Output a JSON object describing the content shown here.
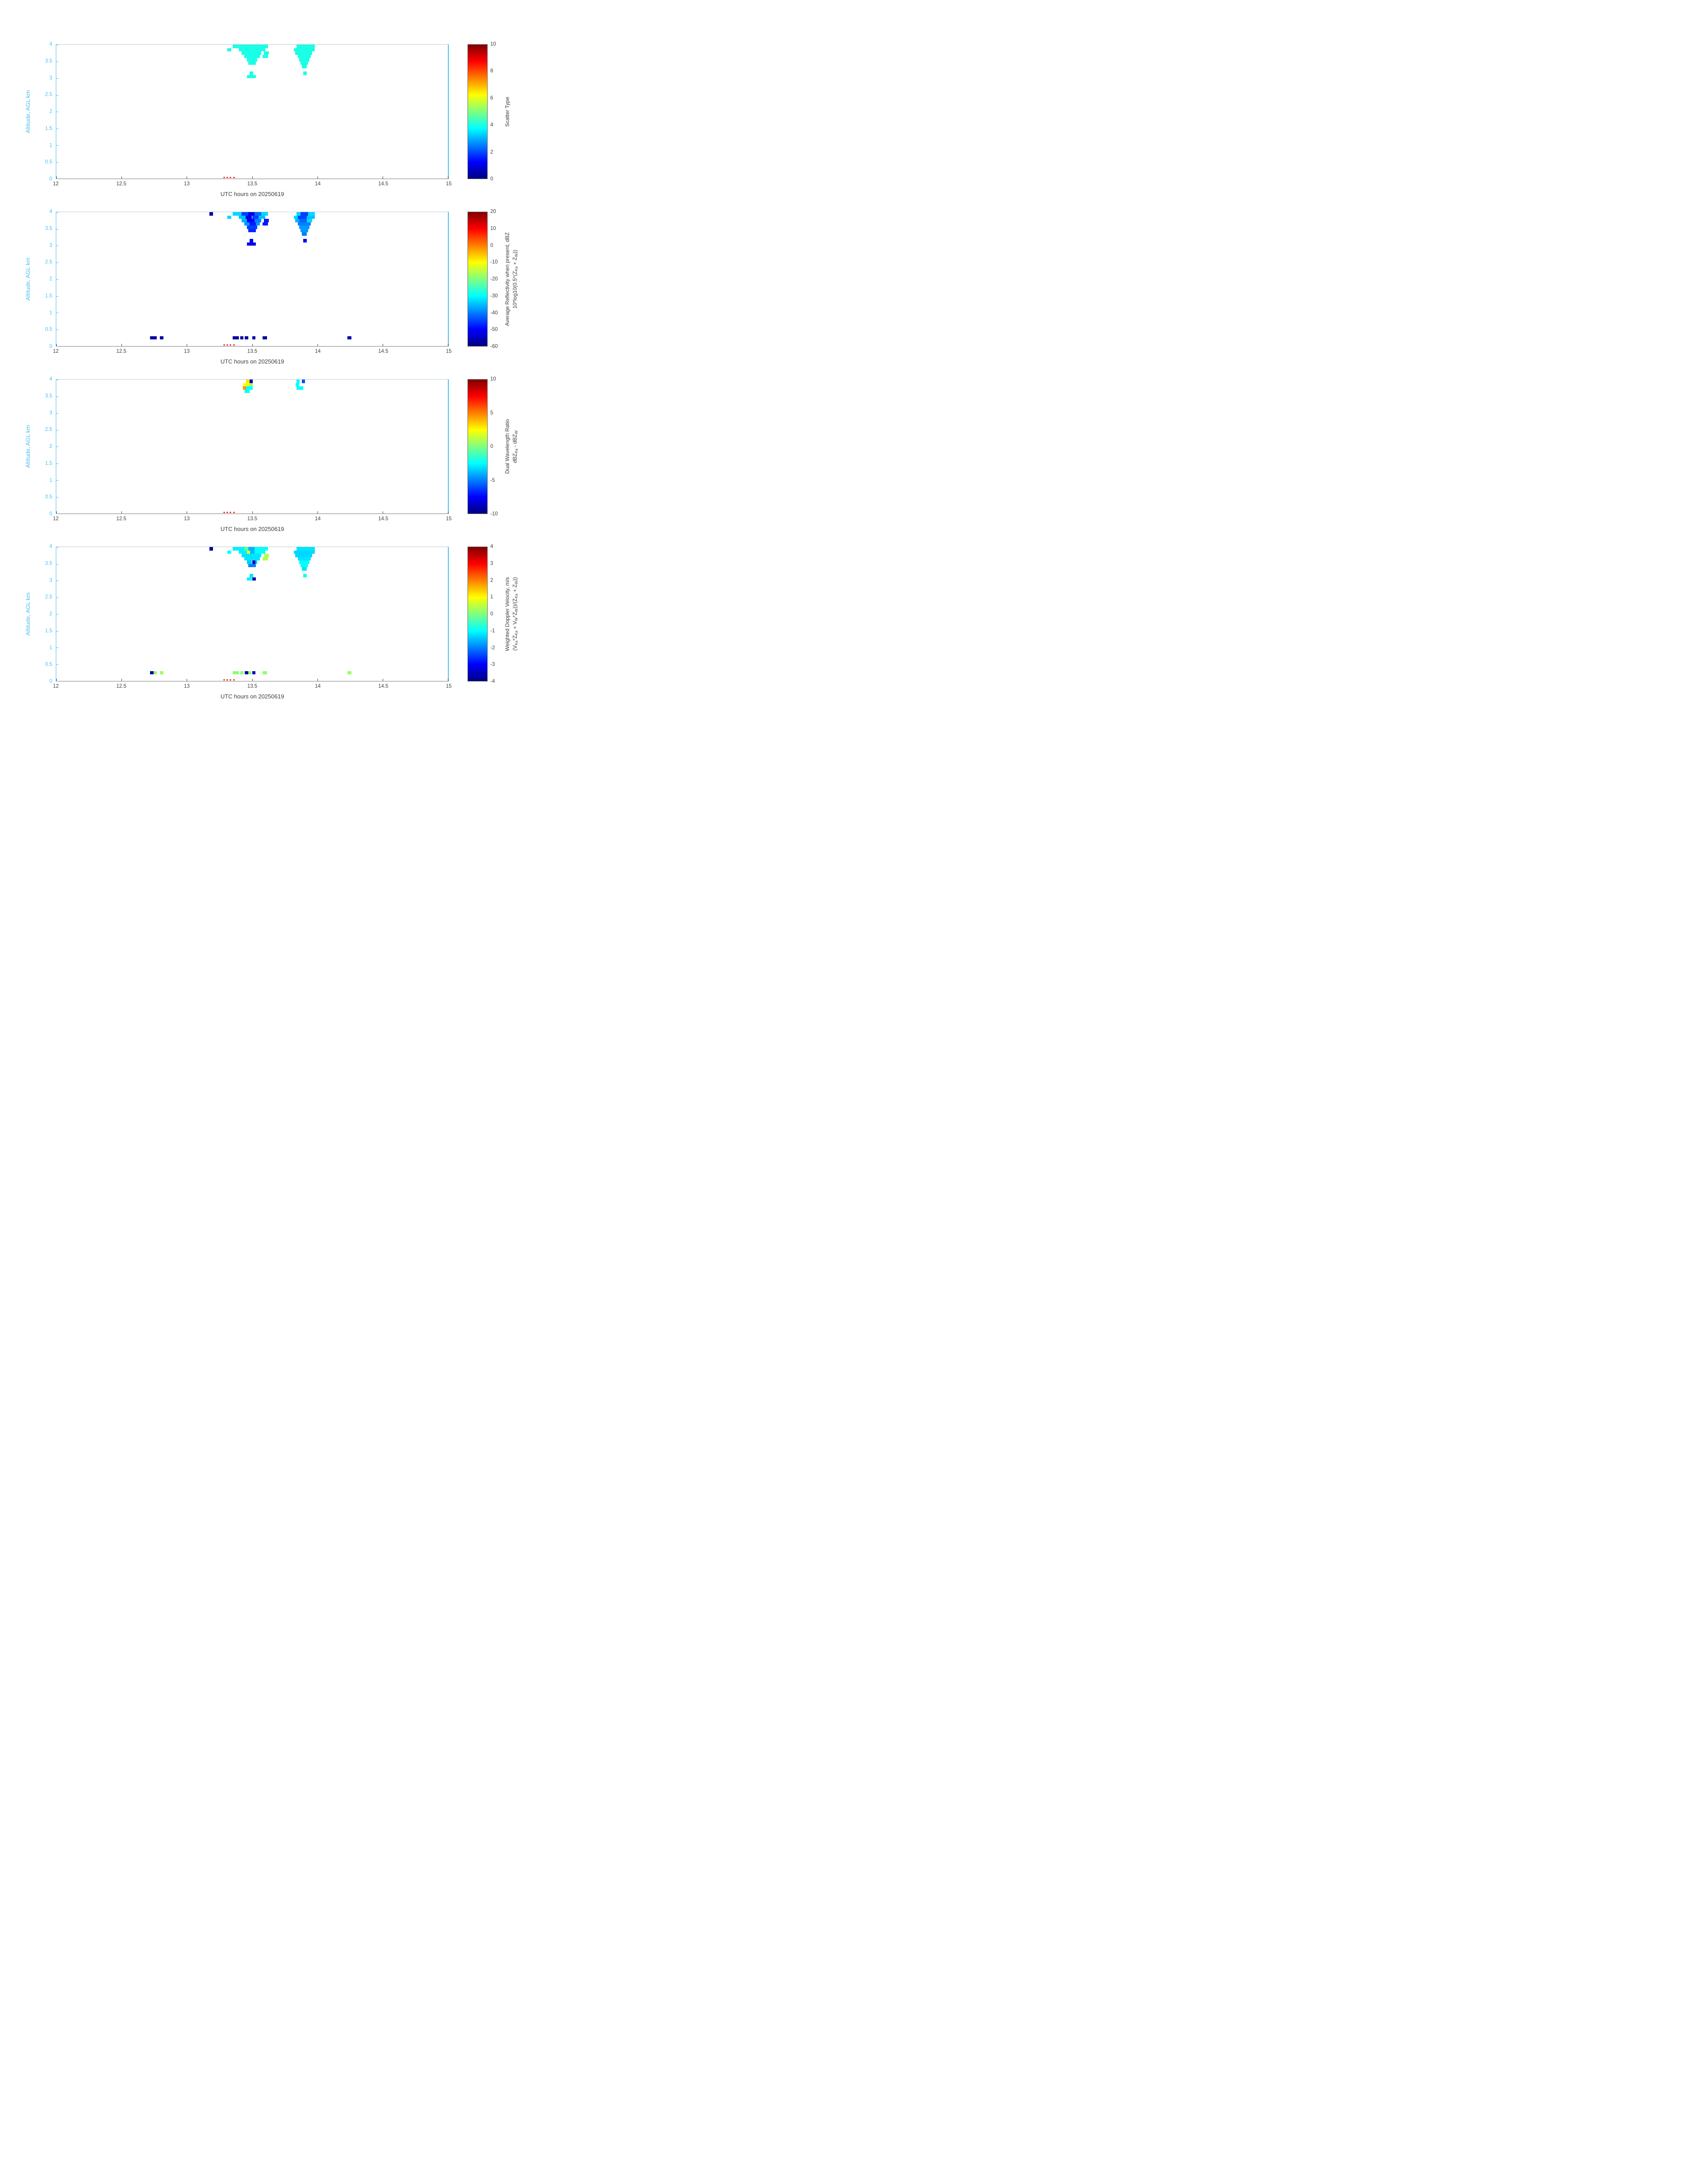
{
  "figure": {
    "background": "#ffffff",
    "axis_x_color": "#3c3c3c",
    "axis_y_color": "#4dbeee"
  },
  "colormap": {
    "name": "jet",
    "stops": [
      [
        0,
        [
          0,
          0,
          128
        ]
      ],
      [
        0.125,
        [
          0,
          0,
          255
        ]
      ],
      [
        0.375,
        [
          0,
          255,
          255
        ]
      ],
      [
        0.625,
        [
          255,
          255,
          0
        ]
      ],
      [
        0.875,
        [
          255,
          0,
          0
        ]
      ],
      [
        1,
        [
          128,
          0,
          0
        ]
      ]
    ]
  },
  "event_markers": {
    "color": "#ff0000",
    "altitude_km": 0.02,
    "times": [
      13.285,
      13.31,
      13.335,
      13.36
    ]
  },
  "cell_run_format": "[altitude_center_km, time_start_utc_h, time_end_utc_h, value]",
  "chart_data": [
    {
      "type": "heatmap",
      "name": "scatter_type",
      "xlabel": "UTC hours on 20250619",
      "ylabel": "Altitude, AGL km",
      "xlim": [
        12,
        15
      ],
      "ylim": [
        0,
        4
      ],
      "x_tick_labels": [
        "12",
        "12.5",
        "13",
        "13.5",
        "14",
        "14.5",
        "15"
      ],
      "x_tick_values": [
        12,
        12.5,
        13,
        13.5,
        14,
        14.5,
        15
      ],
      "y_tick_labels": [
        "0",
        "0.5",
        "1",
        "1.5",
        "2",
        "2.5",
        "3",
        "3.5",
        "4"
      ],
      "y_tick_values": [
        0,
        0.5,
        1,
        1.5,
        2,
        2.5,
        3,
        3.5,
        4
      ],
      "cell_size": {
        "dx": 0.025,
        "dy": 0.1
      },
      "colorbar": {
        "label_lines": [
          "Scatter Type"
        ],
        "tick_labels": [
          "0",
          "2",
          "4",
          "6",
          "8",
          "10"
        ],
        "tick_values": [
          0,
          2,
          4,
          6,
          8,
          10
        ],
        "clim": [
          0,
          10
        ]
      },
      "runs": [
        [
          3.95,
          13.35,
          13.62,
          4
        ],
        [
          3.85,
          13.31,
          13.34,
          4
        ],
        [
          3.85,
          13.4,
          13.6,
          4
        ],
        [
          3.75,
          13.42,
          13.57,
          4
        ],
        [
          3.75,
          13.59,
          13.63,
          4
        ],
        [
          3.65,
          13.44,
          13.56,
          4
        ],
        [
          3.65,
          13.58,
          13.62,
          4
        ],
        [
          3.55,
          13.46,
          13.54,
          4
        ],
        [
          3.45,
          13.47,
          13.53,
          4
        ],
        [
          3.15,
          13.48,
          13.51,
          4
        ],
        [
          3.05,
          13.46,
          13.53,
          4
        ],
        [
          3.95,
          13.84,
          13.98,
          4
        ],
        [
          3.85,
          13.82,
          13.98,
          4
        ],
        [
          3.75,
          13.83,
          13.96,
          4
        ],
        [
          3.65,
          13.85,
          13.95,
          4
        ],
        [
          3.55,
          13.86,
          13.94,
          4
        ],
        [
          3.45,
          13.87,
          13.93,
          4
        ],
        [
          3.35,
          13.88,
          13.92,
          4
        ],
        [
          3.15,
          13.89,
          13.92,
          4
        ]
      ]
    },
    {
      "type": "heatmap",
      "name": "average_reflectivity",
      "xlabel": "UTC hours on 20250619",
      "ylabel": "Altitude, AGL km",
      "xlim": [
        12,
        15
      ],
      "ylim": [
        0,
        4
      ],
      "x_tick_labels": [
        "12",
        "12.5",
        "13",
        "13.5",
        "14",
        "14.5",
        "15"
      ],
      "x_tick_values": [
        12,
        12.5,
        13,
        13.5,
        14,
        14.5,
        15
      ],
      "y_tick_labels": [
        "0",
        "0.5",
        "1",
        "1.5",
        "2",
        "2.5",
        "3",
        "3.5",
        "4"
      ],
      "y_tick_values": [
        0,
        0.5,
        1,
        1.5,
        2,
        2.5,
        3,
        3.5,
        4
      ],
      "cell_size": {
        "dx": 0.025,
        "dy": 0.1
      },
      "colorbar": {
        "label_lines": [
          "Average Reflectivity when present, dBZ",
          "10*log10(0.5*(Z_{Ka} + Z_{W}))"
        ],
        "tick_labels": [
          "-60",
          "-50",
          "-40",
          "-30",
          "-20",
          "-10",
          "0",
          "10",
          "20"
        ],
        "tick_values": [
          -60,
          -50,
          -40,
          -30,
          -20,
          -10,
          0,
          10,
          20
        ],
        "clim": [
          -60,
          20
        ]
      },
      "runs": [
        [
          3.95,
          13.175,
          13.2,
          -57
        ],
        [
          3.95,
          13.35,
          13.42,
          -33
        ],
        [
          3.95,
          13.42,
          13.47,
          -45
        ],
        [
          3.95,
          13.47,
          13.52,
          -52
        ],
        [
          3.95,
          13.52,
          13.57,
          -42
        ],
        [
          3.95,
          13.57,
          13.62,
          -33
        ],
        [
          3.85,
          13.31,
          13.34,
          -33
        ],
        [
          3.85,
          13.4,
          13.45,
          -35
        ],
        [
          3.85,
          13.45,
          13.5,
          -52
        ],
        [
          3.85,
          13.5,
          13.55,
          -45
        ],
        [
          3.85,
          13.55,
          13.6,
          -35
        ],
        [
          3.75,
          13.42,
          13.46,
          -36
        ],
        [
          3.75,
          13.46,
          13.52,
          -50
        ],
        [
          3.75,
          13.52,
          13.57,
          -40
        ],
        [
          3.75,
          13.59,
          13.63,
          -48
        ],
        [
          3.65,
          13.44,
          13.48,
          -38
        ],
        [
          3.65,
          13.48,
          13.53,
          -48
        ],
        [
          3.65,
          13.53,
          13.56,
          -38
        ],
        [
          3.65,
          13.58,
          13.62,
          -48
        ],
        [
          3.55,
          13.46,
          13.54,
          -45
        ],
        [
          3.45,
          13.47,
          13.53,
          -47
        ],
        [
          3.15,
          13.48,
          13.51,
          -50
        ],
        [
          3.05,
          13.46,
          13.53,
          -52
        ],
        [
          3.95,
          13.84,
          13.87,
          -33
        ],
        [
          3.95,
          13.87,
          13.93,
          -45
        ],
        [
          3.95,
          13.93,
          13.98,
          -33
        ],
        [
          3.85,
          13.82,
          13.85,
          -33
        ],
        [
          3.85,
          13.85,
          13.92,
          -45
        ],
        [
          3.85,
          13.92,
          13.98,
          -35
        ],
        [
          3.75,
          13.83,
          13.86,
          -36
        ],
        [
          3.75,
          13.86,
          13.92,
          -42
        ],
        [
          3.75,
          13.92,
          13.96,
          -33
        ],
        [
          3.65,
          13.85,
          13.95,
          -40
        ],
        [
          3.55,
          13.86,
          13.94,
          -38
        ],
        [
          3.45,
          13.87,
          13.93,
          -38
        ],
        [
          3.35,
          13.88,
          13.92,
          -40
        ],
        [
          3.15,
          13.89,
          13.92,
          -50
        ],
        [
          0.25,
          12.72,
          12.77,
          -57
        ],
        [
          0.25,
          12.795,
          12.82,
          -57
        ],
        [
          0.25,
          13.35,
          13.4,
          -57
        ],
        [
          0.25,
          13.41,
          13.435,
          -57
        ],
        [
          0.25,
          13.445,
          13.47,
          -57
        ],
        [
          0.25,
          13.5,
          13.525,
          -57
        ],
        [
          0.25,
          13.58,
          13.615,
          -57
        ],
        [
          0.25,
          14.23,
          14.26,
          -57
        ]
      ]
    },
    {
      "type": "heatmap",
      "name": "dual_wavelength_ratio",
      "xlabel": "UTC hours on 20250619",
      "ylabel": "Altitude, AGL km",
      "xlim": [
        12,
        15
      ],
      "ylim": [
        0,
        4
      ],
      "x_tick_labels": [
        "12",
        "12.5",
        "13",
        "13.5",
        "14",
        "14.5",
        "15"
      ],
      "x_tick_values": [
        12,
        12.5,
        13,
        13.5,
        14,
        14.5,
        15
      ],
      "y_tick_labels": [
        "0",
        "0.5",
        "1",
        "1.5",
        "2",
        "2.5",
        "3",
        "3.5",
        "4"
      ],
      "y_tick_values": [
        0,
        0.5,
        1,
        1.5,
        2,
        2.5,
        3,
        3.5,
        4
      ],
      "cell_size": {
        "dx": 0.025,
        "dy": 0.1
      },
      "colorbar": {
        "label_lines": [
          "Dual Wavelength Ratio",
          "dBZ_{Ka} - dBZ_{W}"
        ],
        "tick_labels": [
          "-10",
          "-5",
          "0",
          "5",
          "10"
        ],
        "tick_values": [
          -10,
          -5,
          0,
          5,
          10
        ],
        "clim": [
          -10,
          10
        ]
      },
      "runs": [
        [
          3.95,
          13.455,
          13.48,
          3
        ],
        [
          3.95,
          13.48,
          13.505,
          -9
        ],
        [
          3.85,
          13.43,
          13.48,
          2.5
        ],
        [
          3.85,
          13.48,
          13.505,
          0.5
        ],
        [
          3.75,
          13.43,
          13.455,
          4.5
        ],
        [
          3.75,
          13.455,
          13.505,
          -2.5
        ],
        [
          3.65,
          13.445,
          13.48,
          -2.5
        ],
        [
          3.95,
          13.84,
          13.865,
          -2.5
        ],
        [
          3.95,
          13.88,
          13.905,
          -6
        ],
        [
          3.85,
          13.835,
          13.86,
          -2.5
        ],
        [
          3.75,
          13.84,
          13.89,
          -2.5
        ]
      ]
    },
    {
      "type": "heatmap",
      "name": "weighted_doppler_velocity",
      "xlabel": "UTC hours on 20250619",
      "ylabel": "Altitude, AGL km",
      "xlim": [
        12,
        15
      ],
      "ylim": [
        0,
        4
      ],
      "x_tick_labels": [
        "12",
        "12.5",
        "13",
        "13.5",
        "14",
        "14.5",
        "15"
      ],
      "x_tick_values": [
        12,
        12.5,
        13,
        13.5,
        14,
        14.5,
        15
      ],
      "y_tick_labels": [
        "0",
        "0.5",
        "1",
        "1.5",
        "2",
        "2.5",
        "3",
        "3.5",
        "4"
      ],
      "y_tick_values": [
        0,
        0.5,
        1,
        1.5,
        2,
        2.5,
        3,
        3.5,
        4
      ],
      "cell_size": {
        "dx": 0.025,
        "dy": 0.1
      },
      "colorbar": {
        "label_lines": [
          "Weighted Doppler Velocity, m/s",
          "(V_{Ka}*Z_{Ka} + V_{W}*Z_{W}))/(Z_{Ka} + Z_{W}))"
        ],
        "tick_labels": [
          "-4",
          "-3",
          "-2",
          "-1",
          "0",
          "1",
          "2",
          "3",
          "4"
        ],
        "tick_values": [
          -4,
          -3,
          -2,
          -1,
          0,
          1,
          2,
          3,
          4
        ],
        "clim": [
          -4,
          4
        ]
      },
      "runs": [
        [
          3.95,
          13.175,
          13.2,
          -3.8
        ],
        [
          3.95,
          13.35,
          13.44,
          -1.1
        ],
        [
          3.95,
          13.44,
          13.47,
          -0.3
        ],
        [
          3.95,
          13.47,
          13.52,
          -1.6
        ],
        [
          3.95,
          13.52,
          13.62,
          -1
        ],
        [
          3.85,
          13.31,
          13.34,
          -1
        ],
        [
          3.85,
          13.4,
          13.46,
          -1.1
        ],
        [
          3.85,
          13.46,
          13.485,
          0.8
        ],
        [
          3.85,
          13.485,
          13.52,
          -1.6
        ],
        [
          3.85,
          13.52,
          13.6,
          -1
        ],
        [
          3.75,
          13.42,
          13.57,
          -1.2
        ],
        [
          3.75,
          13.59,
          13.63,
          0.4
        ],
        [
          3.65,
          13.44,
          13.56,
          -1.2
        ],
        [
          3.65,
          13.58,
          13.62,
          0.4
        ],
        [
          3.55,
          13.46,
          13.5,
          -1.4
        ],
        [
          3.55,
          13.5,
          13.525,
          -3.5
        ],
        [
          3.55,
          13.525,
          13.54,
          -1.4
        ],
        [
          3.45,
          13.47,
          13.53,
          -2
        ],
        [
          3.15,
          13.48,
          13.51,
          -1.2
        ],
        [
          3.05,
          13.46,
          13.5,
          -1.1
        ],
        [
          3.05,
          13.5,
          13.53,
          -3.6
        ],
        [
          3.95,
          13.84,
          13.98,
          -1.2
        ],
        [
          3.85,
          13.82,
          13.98,
          -1.3
        ],
        [
          3.75,
          13.83,
          13.96,
          -1.3
        ],
        [
          3.65,
          13.85,
          13.95,
          -1.2
        ],
        [
          3.55,
          13.86,
          13.94,
          -1
        ],
        [
          3.45,
          13.87,
          13.93,
          -1
        ],
        [
          3.35,
          13.88,
          13.92,
          -1.2
        ],
        [
          3.15,
          13.89,
          13.92,
          -0.8
        ],
        [
          0.25,
          12.72,
          12.745,
          -3.7
        ],
        [
          0.25,
          12.745,
          12.77,
          0.1
        ],
        [
          0.25,
          12.795,
          12.82,
          0.2
        ],
        [
          0.25,
          13.35,
          13.4,
          0.1
        ],
        [
          0.25,
          13.41,
          13.435,
          0.1
        ],
        [
          0.25,
          13.445,
          13.47,
          -3.7
        ],
        [
          0.25,
          13.47,
          13.495,
          0.1
        ],
        [
          0.25,
          13.5,
          13.525,
          -3.5
        ],
        [
          0.25,
          13.58,
          13.615,
          0.1
        ],
        [
          0.25,
          14.23,
          14.26,
          0.2
        ]
      ]
    }
  ]
}
